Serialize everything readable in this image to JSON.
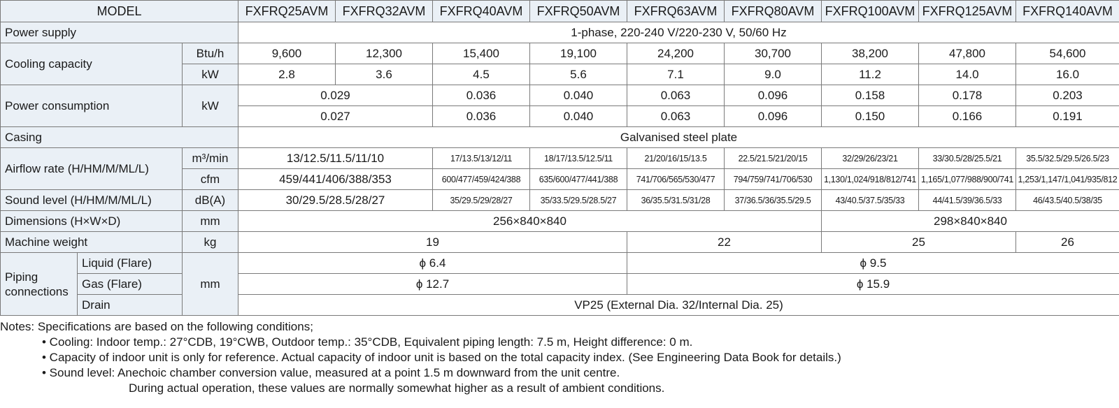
{
  "table": {
    "model_header": "MODEL",
    "models": [
      "FXFRQ25AVM",
      "FXFRQ32AVM",
      "FXFRQ40AVM",
      "FXFRQ50AVM",
      "FXFRQ63AVM",
      "FXFRQ80AVM",
      "FXFRQ100AVM",
      "FXFRQ125AVM",
      "FXFRQ140AVM"
    ],
    "power_supply": {
      "label": "Power supply",
      "value": "1-phase, 220-240 V/220-230 V, 50/60 Hz"
    },
    "cooling_capacity": {
      "label": "Cooling capacity",
      "btu_unit": "Btu/h",
      "btu": [
        "9,600",
        "12,300",
        "15,400",
        "19,100",
        "24,200",
        "30,700",
        "38,200",
        "47,800",
        "54,600"
      ],
      "kw_unit": "kW",
      "kw": [
        "2.8",
        "3.6",
        "4.5",
        "5.6",
        "7.1",
        "9.0",
        "11.2",
        "14.0",
        "16.0"
      ]
    },
    "power_consumption": {
      "label": "Power consumption",
      "unit": "kW",
      "row1": [
        "0.029",
        "0.036",
        "0.040",
        "0.063",
        "0.096",
        "0.158",
        "0.178",
        "0.203"
      ],
      "row2": [
        "0.027",
        "0.036",
        "0.040",
        "0.063",
        "0.096",
        "0.150",
        "0.166",
        "0.191"
      ]
    },
    "casing": {
      "label": "Casing",
      "value": "Galvanised steel plate"
    },
    "airflow": {
      "label": "Airflow rate (H/HM/M/ML/L)",
      "m3_unit": "m³/min",
      "m3": [
        "13/12.5/11.5/11/10",
        "17/13.5/13/12/11",
        "18/17/13.5/12.5/11",
        "21/20/16/15/13.5",
        "22.5/21.5/21/20/15",
        "32/29/26/23/21",
        "33/30.5/28/25.5/21",
        "35.5/32.5/29.5/26.5/23"
      ],
      "cfm_unit": "cfm",
      "cfm": [
        "459/441/406/388/353",
        "600/477/459/424/388",
        "635/600/477/441/388",
        "741/706/565/530/477",
        "794/759/741/706/530",
        "1,130/1,024/918/812/741",
        "1,165/1,077/988/900/741",
        "1,253/1,147/1,041/935/812"
      ]
    },
    "sound": {
      "label": "Sound level (H/HM/M/ML/L)",
      "unit": "dB(A)",
      "values": [
        "30/29.5/28.5/28/27",
        "35/29.5/29/28/27",
        "35/33.5/29.5/28.5/27",
        "36/35.5/31.5/31/28",
        "37/36.5/36/35.5/29.5",
        "43/40.5/37.5/35/33",
        "44/41.5/39/36.5/33",
        "46/43.5/40.5/38/35"
      ]
    },
    "dimensions": {
      "label": "Dimensions (H×W×D)",
      "unit": "mm",
      "values": [
        "256×840×840",
        "298×840×840"
      ]
    },
    "weight": {
      "label": "Machine weight",
      "unit": "kg",
      "values": [
        "19",
        "22",
        "25",
        "26"
      ]
    },
    "piping": {
      "label": "Piping connections",
      "unit": "mm",
      "liquid_label": "Liquid (Flare)",
      "liquid": [
        "ϕ 6.4",
        "ϕ 9.5"
      ],
      "gas_label": "Gas (Flare)",
      "gas": [
        "ϕ 12.7",
        "ϕ 15.9"
      ],
      "drain_label": "Drain",
      "drain": "VP25 (External Dia. 32/Internal Dia. 25)"
    }
  },
  "notes": {
    "intro": "Notes: Specifications are based on the following conditions;",
    "bullet1": "• Cooling: Indoor temp.: 27°CDB, 19°CWB, Outdoor temp.: 35°CDB, Equivalent piping length: 7.5 m, Height difference: 0 m.",
    "bullet2": "• Capacity of indoor unit is only for reference. Actual capacity of indoor unit is based on the total capacity index. (See Engineering Data Book for details.)",
    "bullet3": "• Sound level: Anechoic chamber conversion value, measured at a point 1.5 m downward from the unit centre.",
    "bullet3_cont": "During actual operation, these values are normally somewhat higher as a result of ambient conditions."
  }
}
